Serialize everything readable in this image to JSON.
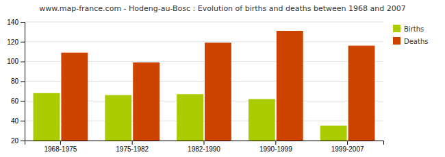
{
  "chart_data": {
    "type": "bar",
    "title": "www.map-france.com - Hodeng-au-Bosc : Evolution of births and deaths between 1968 and 2007",
    "categories": [
      "1968-1975",
      "1975-1982",
      "1982-1990",
      "1990-1999",
      "1999-2007"
    ],
    "series": [
      {
        "name": "Births",
        "color": "#aacc00",
        "values": [
          68,
          66,
          67,
          62,
          35
        ]
      },
      {
        "name": "Deaths",
        "color": "#cc4400",
        "values": [
          109,
          99,
          119,
          131,
          116
        ]
      }
    ],
    "ylim": [
      20,
      140
    ],
    "yticks": [
      20,
      40,
      60,
      80,
      100,
      120,
      140
    ],
    "grid": true,
    "legend": "upper right"
  }
}
